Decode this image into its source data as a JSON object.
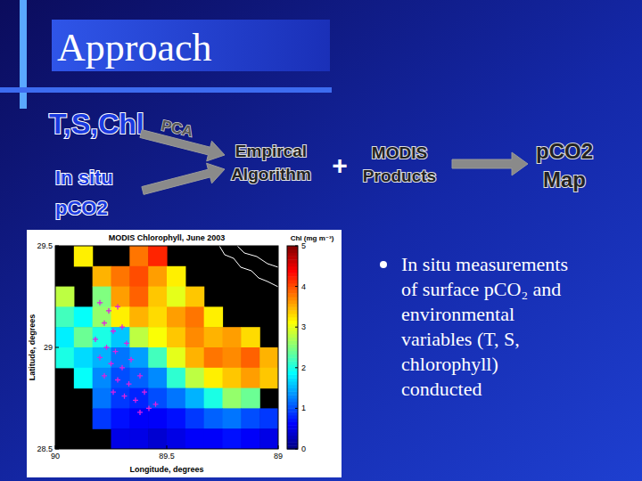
{
  "title": "Approach",
  "flow": {
    "nodes": [
      {
        "lines": [
          "T,S,Chl"
        ]
      },
      {
        "lines": [
          "In situ",
          "pCO2"
        ]
      },
      {
        "lines": [
          "Empircal",
          "Algorithm"
        ]
      },
      {
        "lines": [
          "MODIS",
          "Products"
        ]
      },
      {
        "lines": [
          "pCO2",
          "Map"
        ]
      }
    ],
    "edge_label": "PCA",
    "operator": "+"
  },
  "chart_data": {
    "type": "heatmap",
    "title": "MODIS Chlorophyll, June 2003",
    "x_label": "Longitude, degrees",
    "y_label": "Latitude, degrees",
    "xlim": [
      90,
      89
    ],
    "ylim": [
      28.5,
      29.5
    ],
    "xticks": [
      90,
      89.5,
      89
    ],
    "yticks": [
      28.5,
      29,
      29.5
    ],
    "cells": [
      [
        null,
        3.2,
        null,
        null,
        3.8,
        4.2,
        null,
        null,
        null,
        null,
        null,
        null
      ],
      [
        null,
        null,
        3.5,
        3.8,
        4.0,
        3.6,
        3.2,
        null,
        null,
        null,
        null,
        null
      ],
      [
        2.8,
        null,
        2.5,
        3.6,
        3.9,
        3.4,
        3.0,
        3.4,
        null,
        null,
        null,
        null
      ],
      [
        2.2,
        1.9,
        2.6,
        3.2,
        3.5,
        3.3,
        3.6,
        3.8,
        3.2,
        null,
        null,
        null
      ],
      [
        1.8,
        2.4,
        2.0,
        1.6,
        2.8,
        3.1,
        3.4,
        3.7,
        3.5,
        3.6,
        3.3,
        null
      ],
      [
        2.0,
        1.7,
        1.5,
        1.2,
        1.4,
        2.2,
        3.0,
        3.5,
        3.8,
        3.7,
        3.9,
        3.5
      ],
      [
        null,
        1.9,
        1.3,
        1.0,
        1.1,
        1.3,
        2.1,
        2.8,
        3.2,
        3.4,
        3.6,
        3.4
      ],
      [
        null,
        null,
        1.2,
        0.9,
        0.8,
        1.0,
        1.2,
        1.5,
        2.0,
        2.6,
        2.4,
        null
      ],
      [
        null,
        null,
        0.9,
        0.7,
        0.6,
        0.6,
        0.7,
        0.9,
        1.1,
        1.2,
        1.0,
        0.9
      ],
      [
        null,
        null,
        null,
        0.5,
        0.5,
        0.4,
        0.5,
        0.6,
        0.6,
        0.7,
        0.6,
        0.5
      ]
    ],
    "colorbar": {
      "label": "Chl (mg m⁻³)",
      "range": [
        0,
        5
      ],
      "ticks": [
        0,
        1,
        2,
        3,
        4,
        5
      ]
    },
    "series": [
      {
        "type": "scatter",
        "marker": "plus",
        "color": "#e020e0",
        "x": [
          89.8,
          89.76,
          89.72,
          89.78,
          89.74,
          89.7,
          89.82,
          89.77,
          89.73,
          89.68,
          89.8,
          89.75,
          89.7,
          89.66,
          89.78,
          89.72,
          89.67,
          89.62,
          89.74,
          89.69,
          89.64,
          89.6,
          89.58,
          89.55,
          89.62
        ],
        "values": [
          29.22,
          29.18,
          29.2,
          29.12,
          29.08,
          29.1,
          29.04,
          29.0,
          28.98,
          29.02,
          28.95,
          28.92,
          28.9,
          28.94,
          28.86,
          28.84,
          28.82,
          28.86,
          28.78,
          28.76,
          28.74,
          28.78,
          28.7,
          28.72,
          28.68
        ]
      }
    ]
  },
  "bullets": [
    {
      "lines": [
        "In situ measurements",
        "of surface pCO₂ and",
        "environmental",
        "variables (T, S,",
        "chlorophyll)",
        "conducted"
      ]
    }
  ]
}
